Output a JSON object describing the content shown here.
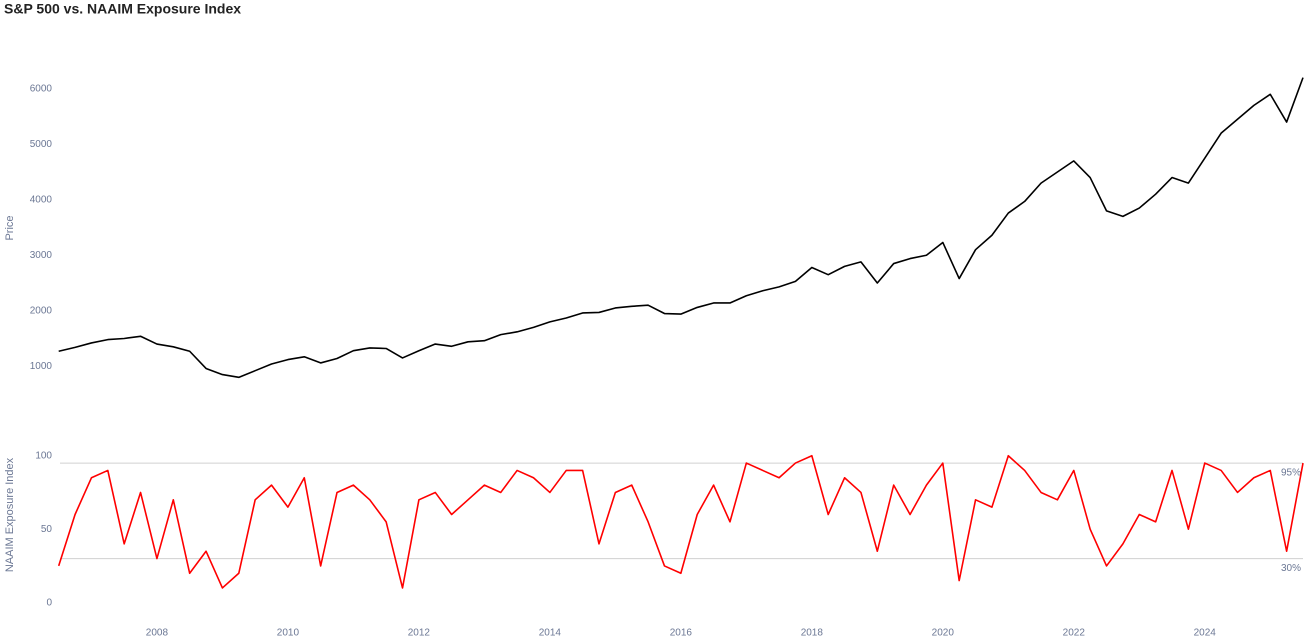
{
  "chart_data": [
    {
      "type": "line",
      "title": "S&P 500 vs. NAAIM Exposure Index",
      "ylabel": "Price",
      "color": "#000000",
      "x": [
        2006.5,
        2006.75,
        2007,
        2007.25,
        2007.5,
        2007.75,
        2008,
        2008.25,
        2008.5,
        2008.75,
        2009,
        2009.25,
        2009.5,
        2009.75,
        2010,
        2010.25,
        2010.5,
        2010.75,
        2011,
        2011.25,
        2011.5,
        2011.75,
        2012,
        2012.25,
        2012.5,
        2012.75,
        2013,
        2013.25,
        2013.5,
        2013.75,
        2014,
        2014.25,
        2014.5,
        2014.75,
        2015,
        2015.25,
        2015.5,
        2015.75,
        2016,
        2016.25,
        2016.5,
        2016.75,
        2017,
        2017.25,
        2017.5,
        2017.75,
        2018,
        2018.25,
        2018.5,
        2018.75,
        2019,
        2019.25,
        2019.5,
        2019.75,
        2020,
        2020.25,
        2020.5,
        2020.75,
        2021,
        2021.25,
        2021.5,
        2021.75,
        2022,
        2022.25,
        2022.5,
        2022.75,
        2023,
        2023.25,
        2023.5,
        2023.75,
        2024,
        2024.25,
        2024.5,
        2024.75,
        2025,
        2025.25,
        2025.5
      ],
      "values": [
        1270,
        1340,
        1420,
        1480,
        1500,
        1540,
        1400,
        1350,
        1270,
        960,
        850,
        800,
        920,
        1040,
        1120,
        1170,
        1060,
        1140,
        1280,
        1330,
        1320,
        1150,
        1280,
        1400,
        1360,
        1440,
        1460,
        1570,
        1620,
        1700,
        1800,
        1870,
        1960,
        1970,
        2050,
        2080,
        2100,
        1950,
        1940,
        2060,
        2140,
        2140,
        2270,
        2360,
        2430,
        2530,
        2780,
        2650,
        2800,
        2880,
        2500,
        2850,
        2940,
        3000,
        3230,
        2580,
        3100,
        3360,
        3760,
        3970,
        4300,
        4500,
        4700,
        4400,
        3800,
        3700,
        3850,
        4100,
        4400,
        4300,
        4750,
        5200,
        5450,
        5700,
        5900,
        5400,
        6200
      ],
      "xlim": [
        2006.52,
        2025.5
      ],
      "ylim": [
        500,
        6500
      ],
      "yticks": [
        1000,
        2000,
        3000,
        4000,
        5000,
        6000
      ]
    },
    {
      "type": "line",
      "ylabel": "NAAIM Exposure Index",
      "color": "#ff0000",
      "x": [
        2006.5,
        2006.75,
        2007,
        2007.25,
        2007.5,
        2007.75,
        2008,
        2008.25,
        2008.5,
        2008.75,
        2009,
        2009.25,
        2009.5,
        2009.75,
        2010,
        2010.25,
        2010.5,
        2010.75,
        2011,
        2011.25,
        2011.5,
        2011.75,
        2012,
        2012.25,
        2012.5,
        2012.75,
        2013,
        2013.25,
        2013.5,
        2013.75,
        2014,
        2014.25,
        2014.5,
        2014.75,
        2015,
        2015.25,
        2015.5,
        2015.75,
        2016,
        2016.25,
        2016.5,
        2016.75,
        2017,
        2017.25,
        2017.5,
        2017.75,
        2018,
        2018.25,
        2018.5,
        2018.75,
        2019,
        2019.25,
        2019.5,
        2019.75,
        2020,
        2020.25,
        2020.5,
        2020.75,
        2021,
        2021.25,
        2021.5,
        2021.75,
        2022,
        2022.25,
        2022.5,
        2022.75,
        2023,
        2023.25,
        2023.5,
        2023.75,
        2024,
        2024.25,
        2024.5,
        2024.75,
        2025,
        2025.25,
        2025.5
      ],
      "values": [
        25,
        60,
        85,
        90,
        40,
        75,
        30,
        70,
        20,
        35,
        10,
        20,
        70,
        80,
        65,
        85,
        25,
        75,
        80,
        70,
        55,
        10,
        70,
        75,
        60,
        70,
        80,
        75,
        90,
        85,
        75,
        90,
        90,
        40,
        75,
        80,
        55,
        25,
        20,
        60,
        80,
        55,
        95,
        90,
        85,
        95,
        100,
        60,
        85,
        75,
        35,
        80,
        60,
        80,
        95,
        15,
        70,
        65,
        100,
        90,
        75,
        70,
        90,
        50,
        25,
        40,
        60,
        55,
        90,
        50,
        95,
        90,
        75,
        85,
        90,
        35,
        95
      ],
      "xlim": [
        2006.52,
        2025.5
      ],
      "ylim": [
        -5,
        125
      ],
      "yticks": [
        0,
        50,
        100
      ],
      "xticks": [
        2008,
        2010,
        2012,
        2014,
        2016,
        2018,
        2020,
        2022,
        2024
      ],
      "reference_lines": [
        {
          "value": 95,
          "label": "95%"
        },
        {
          "value": 30,
          "label": "30%"
        }
      ]
    }
  ]
}
